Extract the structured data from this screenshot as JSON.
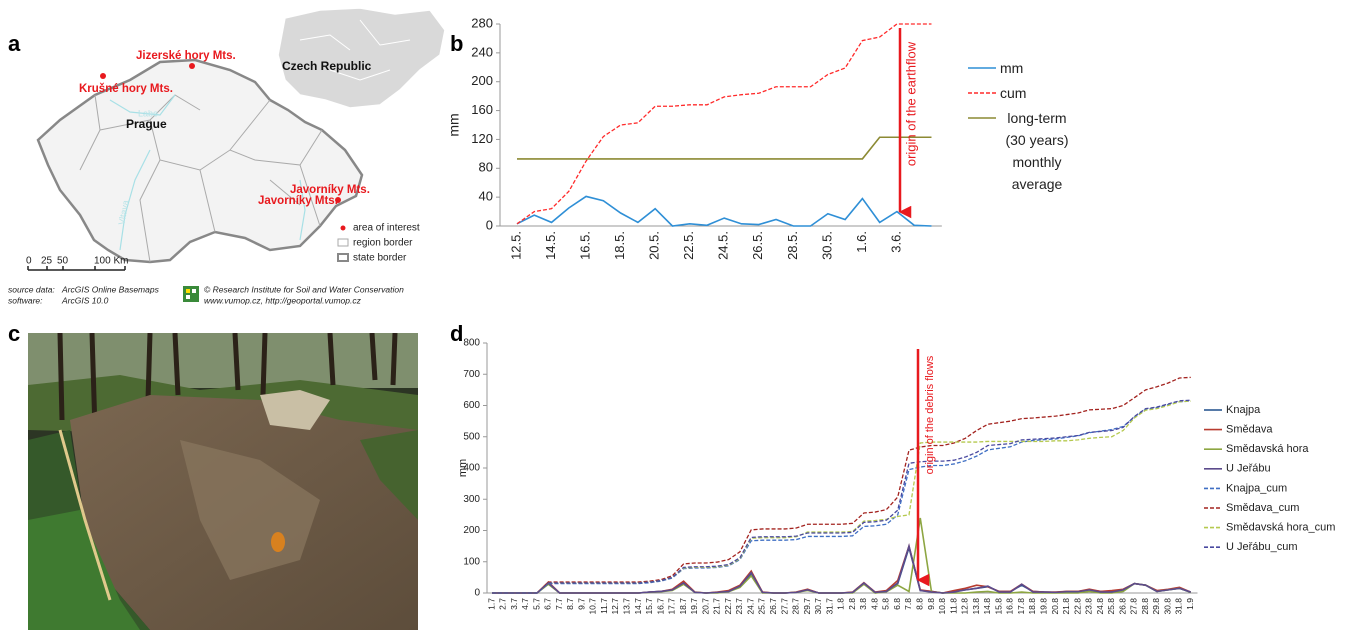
{
  "panel_labels": [
    "a",
    "b",
    "c",
    "d"
  ],
  "map": {
    "places": [
      "Jizerské hory Mts.",
      "Krušné hory Mts.",
      "Javorníky Mts.",
      "Javorníky Mts."
    ],
    "country": "Czech Republic",
    "capital": "Prague",
    "rivers": [
      "Labe",
      "Vltava"
    ],
    "legend": [
      "area of interest",
      "region border",
      "state border"
    ],
    "scale": [
      "0",
      "25",
      "50",
      "100 Km"
    ],
    "source": [
      [
        "source data:",
        "ArcGIS Online Basemaps"
      ],
      [
        "software:",
        "ArcGIS 10.0"
      ]
    ],
    "credit": [
      "© Research Institute for Soil and Water Conservation",
      "www.vumop.cz, http://geoportal.vumop.cz"
    ]
  },
  "chart_data": [
    {
      "type": "line",
      "y_label": "mm",
      "annotation": "origin of the earthflow",
      "categories": [
        "12.5.",
        null,
        "14.5.",
        null,
        "16.5.",
        null,
        "18.5.",
        null,
        "20.5.",
        null,
        "22.5.",
        null,
        "24.5.",
        null,
        "26.5.",
        null,
        "28.5.",
        null,
        "30.5.",
        null,
        "1.6.",
        null,
        "3.6.",
        null,
        null
      ],
      "ylim": [
        0,
        280
      ],
      "yticks": [
        0,
        40,
        80,
        120,
        160,
        200,
        240,
        280
      ],
      "series": [
        {
          "name": "mm",
          "color": "#2f8fd6",
          "values": [
            3,
            15,
            5,
            25,
            41,
            35,
            18,
            5,
            24,
            0,
            3,
            1,
            11,
            3,
            2,
            9,
            0,
            0,
            17,
            9,
            38,
            5,
            20,
            1,
            0
          ]
        },
        {
          "name": "cum",
          "color": "#ff2a2a",
          "dash": true,
          "values": [
            3,
            20,
            24,
            48,
            90,
            124,
            140,
            143,
            166,
            166,
            168,
            168,
            179,
            182,
            184,
            193,
            193,
            193,
            210,
            219,
            257,
            262,
            280,
            280,
            280
          ]
        },
        {
          "name": "long-term (30 years) monthly average",
          "color": "#8c8a33",
          "values": [
            93,
            93,
            93,
            93,
            93,
            93,
            93,
            93,
            93,
            93,
            93,
            93,
            93,
            93,
            93,
            93,
            93,
            93,
            93,
            93,
            93,
            123,
            123,
            123,
            123
          ]
        }
      ]
    },
    {
      "type": "line",
      "y_label": "mm",
      "annotation": "origin of the debris flows",
      "categories": [
        "1.7",
        "2.7",
        "3.7",
        "4.7",
        "5.7",
        "6.7",
        "7.7",
        "8.7",
        "9.7",
        "10.7",
        "11.7",
        "12.7",
        "13.7",
        "14.7",
        "15.7",
        "16.7",
        "17.7",
        "18.7",
        "19.7",
        "20.7",
        "21.7",
        "22.7",
        "23.7",
        "24.7",
        "25.7",
        "26.7",
        "27.7",
        "28.7",
        "29.7",
        "30.7",
        "31.7",
        "1.8",
        "2.8",
        "3.8",
        "4.8",
        "5.8",
        "6.8",
        "7.8",
        "8.8",
        "9.8",
        "10.8",
        "11.8",
        "12.8",
        "13.8",
        "14.8",
        "15.8",
        "16.8",
        "17.8",
        "18.8",
        "19.8",
        "20.8",
        "21.8",
        "22.8",
        "23.8",
        "24.8",
        "25.8",
        "26.8",
        "27.8",
        "28.8",
        "29.8",
        "30.8",
        "31.8",
        "1.9"
      ],
      "ylim": [
        0,
        800
      ],
      "yticks": [
        0,
        100,
        200,
        300,
        400,
        500,
        600,
        700,
        800
      ],
      "series": [
        {
          "name": "Knajpa",
          "color": "#1f4e8c",
          "values": [
            0,
            0,
            0,
            0,
            0,
            30,
            0,
            0,
            0,
            0,
            0,
            0,
            0,
            0,
            3,
            5,
            10,
            30,
            2,
            0,
            2,
            5,
            20,
            60,
            2,
            0,
            0,
            2,
            10,
            0,
            0,
            0,
            2,
            30,
            2,
            5,
            30,
            145,
            8,
            5,
            0,
            5,
            10,
            15,
            20,
            5,
            5,
            25,
            5,
            3,
            2,
            5,
            5,
            10,
            5,
            5,
            10,
            30,
            25,
            5,
            10,
            15,
            2
          ]
        },
        {
          "name": "Smědava",
          "color": "#b83c30",
          "values": [
            0,
            0,
            0,
            0,
            0,
            35,
            0,
            0,
            0,
            0,
            0,
            0,
            0,
            0,
            3,
            5,
            12,
            38,
            3,
            0,
            3,
            8,
            25,
            70,
            3,
            0,
            0,
            3,
            12,
            0,
            0,
            0,
            3,
            33,
            3,
            8,
            40,
            150,
            10,
            5,
            0,
            8,
            15,
            25,
            20,
            5,
            5,
            28,
            5,
            3,
            3,
            5,
            5,
            12,
            5,
            8,
            12,
            30,
            25,
            8,
            12,
            18,
            3
          ]
        },
        {
          "name": "Smědavská hora",
          "color": "#8da642",
          "values": [
            0,
            0,
            0,
            0,
            0,
            28,
            0,
            0,
            0,
            0,
            0,
            0,
            0,
            0,
            2,
            4,
            8,
            28,
            2,
            0,
            0,
            4,
            18,
            55,
            0,
            0,
            0,
            2,
            8,
            0,
            0,
            0,
            0,
            28,
            0,
            4,
            25,
            5,
            240,
            3,
            0,
            0,
            0,
            3,
            5,
            0,
            0,
            3,
            0,
            0,
            0,
            0,
            0,
            5,
            0,
            0,
            5,
            30,
            25,
            5,
            10,
            15,
            2
          ]
        },
        {
          "name": "U Jeřábu",
          "color": "#5c4b8c",
          "values": [
            0,
            0,
            0,
            0,
            0,
            32,
            0,
            0,
            0,
            0,
            0,
            0,
            0,
            0,
            3,
            5,
            10,
            32,
            2,
            0,
            2,
            5,
            22,
            65,
            2,
            0,
            0,
            2,
            10,
            0,
            0,
            0,
            2,
            32,
            2,
            5,
            32,
            150,
            8,
            3,
            0,
            3,
            10,
            15,
            22,
            3,
            3,
            28,
            3,
            3,
            2,
            4,
            4,
            10,
            3,
            3,
            10,
            30,
            25,
            5,
            10,
            15,
            3
          ]
        },
        {
          "name": "Knajpa_cum",
          "color": "#3f6fc4",
          "dash": true,
          "values": [
            0,
            0,
            0,
            0,
            0,
            30,
            30,
            30,
            30,
            30,
            30,
            30,
            30,
            30,
            33,
            38,
            48,
            78,
            80,
            80,
            82,
            87,
            107,
            167,
            169,
            169,
            169,
            171,
            181,
            181,
            181,
            181,
            183,
            213,
            215,
            220,
            250,
            395,
            403,
            408,
            408,
            413,
            423,
            438,
            458,
            463,
            468,
            483,
            488,
            491,
            493,
            498,
            503,
            513,
            518,
            523,
            533,
            563,
            588,
            593,
            603,
            612,
            614
          ]
        },
        {
          "name": "Smědava_cum",
          "color": "#a3231f",
          "dash": true,
          "values": [
            0,
            0,
            0,
            0,
            0,
            35,
            35,
            35,
            35,
            35,
            35,
            35,
            35,
            35,
            38,
            43,
            55,
            93,
            96,
            96,
            99,
            107,
            132,
            202,
            205,
            205,
            205,
            208,
            220,
            220,
            220,
            220,
            223,
            256,
            259,
            267,
            307,
            457,
            467,
            472,
            472,
            480,
            495,
            520,
            540,
            545,
            550,
            558,
            560,
            563,
            566,
            571,
            576,
            586,
            588,
            590,
            600,
            625,
            650,
            660,
            672,
            688,
            690
          ]
        },
        {
          "name": "Smědavská hora_cum",
          "color": "#b5c94f",
          "dash": true,
          "values": [
            0,
            0,
            0,
            0,
            0,
            32,
            32,
            32,
            32,
            32,
            32,
            32,
            32,
            32,
            35,
            40,
            50,
            80,
            82,
            82,
            84,
            89,
            110,
            175,
            177,
            177,
            177,
            180,
            195,
            195,
            195,
            195,
            197,
            230,
            232,
            236,
            245,
            250,
            480,
            483,
            483,
            483,
            483,
            483,
            485,
            485,
            485,
            485,
            485,
            485,
            487,
            487,
            490,
            495,
            498,
            500,
            520,
            560,
            585,
            590,
            600,
            612,
            614
          ]
        },
        {
          "name": "U Jeřábu_cum",
          "color": "#4a4aa0",
          "dash": true,
          "values": [
            0,
            0,
            0,
            0,
            0,
            32,
            32,
            32,
            32,
            32,
            32,
            32,
            32,
            32,
            35,
            40,
            50,
            82,
            84,
            84,
            86,
            91,
            113,
            178,
            180,
            180,
            180,
            182,
            192,
            192,
            192,
            192,
            194,
            226,
            228,
            233,
            265,
            415,
            420,
            422,
            422,
            425,
            435,
            450,
            472,
            475,
            478,
            490,
            492,
            494,
            496,
            500,
            504,
            514,
            517,
            520,
            530,
            565,
            590,
            595,
            605,
            615,
            617
          ]
        }
      ]
    }
  ]
}
